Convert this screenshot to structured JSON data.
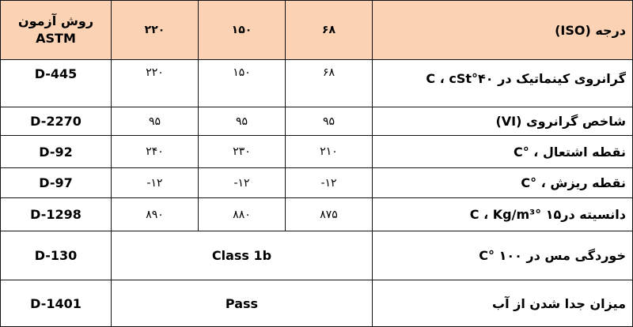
{
  "header": {
    "method_line1": "روش آزمون",
    "method_line2": "ASTM",
    "grades": [
      "۲۲۰",
      "۱۵۰",
      "۶۸"
    ],
    "property": "درجه (ISO)"
  },
  "rows": [
    {
      "method": "D-445",
      "values": [
        "۲۲۰",
        "۱۵۰",
        "۶۸"
      ],
      "property": "گرانروی کینماتیک در ۴۰°C ، cSt"
    },
    {
      "method": "D-2270",
      "values": [
        "۹۵",
        "۹۵",
        "۹۵"
      ],
      "property": "شاخص گرانروی (VI)"
    },
    {
      "method": "D-92",
      "values": [
        "۲۴۰",
        "۲۳۰",
        "۲۱۰"
      ],
      "property": "نقطه اشتعال ، °C"
    },
    {
      "method": "D-97",
      "values": [
        "-۱۲",
        "-۱۲",
        "-۱۲"
      ],
      "property": "نقطه ریزش ، °C"
    },
    {
      "method": "D-1298",
      "values": [
        "۸۹۰",
        "۸۸۰",
        "۸۷۵"
      ],
      "property": "دانسیته در۱۵ °C ، Kg/m³"
    },
    {
      "method": "D-130",
      "merged": "Class 1b",
      "property": "خوردگی مس در ۱۰۰ °C"
    },
    {
      "method": "D-1401",
      "merged": "Pass",
      "property": "میزان جدا شدن از آب"
    }
  ]
}
